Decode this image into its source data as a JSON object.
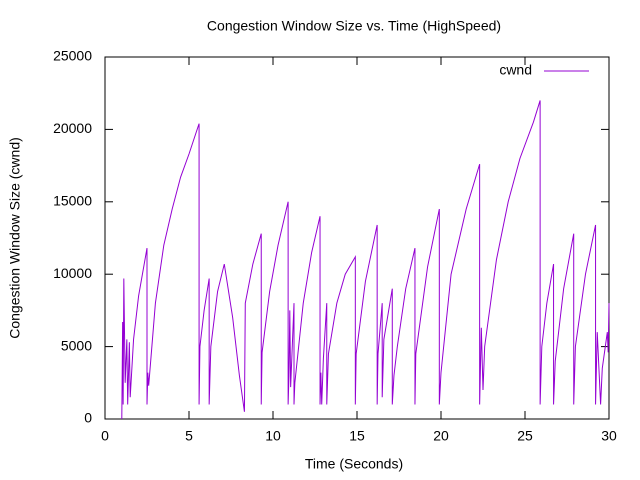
{
  "chart_data": {
    "type": "line",
    "title": "Congestion Window Size vs. Time (HighSpeed)",
    "xlabel": "Time (Seconds)",
    "ylabel": "Congestion Window Size (cwnd)",
    "xlim": [
      0,
      30
    ],
    "xticks": [
      0,
      5,
      10,
      15,
      20,
      25,
      30
    ],
    "ylim": [
      0,
      25000
    ],
    "yticks": [
      0,
      5000,
      10000,
      15000,
      20000,
      25000
    ],
    "grid": false,
    "legend": "top-right",
    "x": [
      1.0,
      1.05,
      1.08,
      1.12,
      1.2,
      1.3,
      1.35,
      1.45,
      1.5,
      1.7,
      2.0,
      2.5,
      2.5,
      2.55,
      2.6,
      3.0,
      3.5,
      4.0,
      4.5,
      5.0,
      5.6,
      5.6,
      5.65,
      5.9,
      6.2,
      6.2,
      6.3,
      6.7,
      7.1,
      7.6,
      8.0,
      8.3,
      8.35,
      8.8,
      9.3,
      9.3,
      9.35,
      9.8,
      10.3,
      10.9,
      10.9,
      10.95,
      11.0,
      11.05,
      11.25,
      11.25,
      11.3,
      11.8,
      12.3,
      12.8,
      12.8,
      12.85,
      12.9,
      13.0,
      13.2,
      13.2,
      13.3,
      13.8,
      14.3,
      14.9,
      14.9,
      14.95,
      15.5,
      16.2,
      16.2,
      16.25,
      16.5,
      16.5,
      16.6,
      17.1,
      17.1,
      17.2,
      17.4,
      17.9,
      18.45,
      18.45,
      18.5,
      19.2,
      19.9,
      19.9,
      20.0,
      20.6,
      21.5,
      22.3,
      22.3,
      22.4,
      22.5,
      22.6,
      23.3,
      24.0,
      24.7,
      25.5,
      25.9,
      25.9,
      26.0,
      26.3,
      26.7,
      26.7,
      26.8,
      27.3,
      27.9,
      27.9,
      28.0,
      28.6,
      29.2,
      29.2,
      29.3,
      29.5,
      29.6,
      29.9,
      29.95,
      30.0
    ],
    "series": [
      {
        "name": "cwnd",
        "color": "#9400d3",
        "values": [
          0,
          6700,
          1000,
          9700,
          2500,
          5500,
          1000,
          5300,
          1500,
          5500,
          8500,
          11800,
          1000,
          3200,
          2300,
          8000,
          12000,
          14500,
          16700,
          18300,
          20400,
          1000,
          5000,
          7500,
          9700,
          1000,
          5000,
          8800,
          10700,
          7000,
          3000,
          500,
          8000,
          10700,
          12800,
          1000,
          4600,
          8800,
          12000,
          15000,
          1000,
          3000,
          7500,
          2200,
          8000,
          1000,
          2500,
          8000,
          11500,
          14000,
          1000,
          3200,
          1000,
          4200,
          8000,
          1000,
          4500,
          8000,
          10000,
          11200,
          1000,
          4500,
          9500,
          13400,
          1000,
          4500,
          8000,
          1500,
          5500,
          9000,
          1000,
          3000,
          5000,
          9000,
          11800,
          1000,
          4500,
          10500,
          14500,
          1000,
          3200,
          10000,
          14500,
          17600,
          1000,
          6300,
          2000,
          5000,
          11000,
          15000,
          18000,
          20500,
          22000,
          1000,
          5000,
          8000,
          10700,
          1000,
          4000,
          9000,
          12800,
          1000,
          5000,
          10000,
          13400,
          1000,
          6000,
          1000,
          3500,
          6000,
          4600,
          8000
        ]
      }
    ]
  }
}
